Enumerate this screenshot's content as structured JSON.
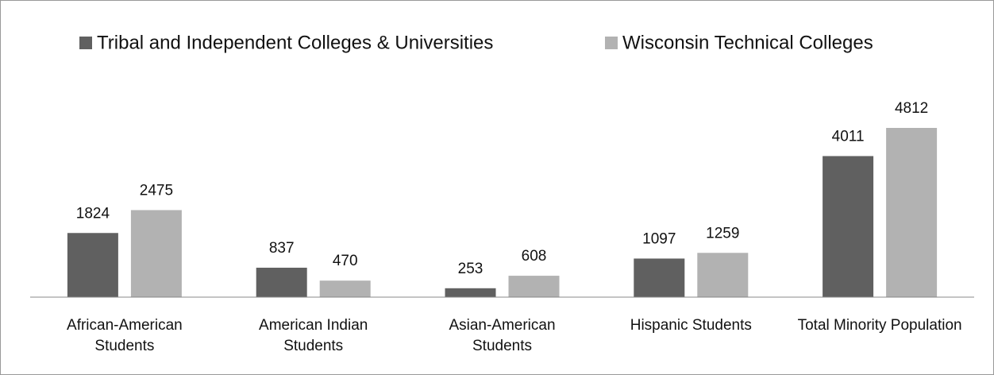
{
  "chart_data": {
    "type": "bar",
    "categories": [
      "African-American Students",
      "American Indian Students",
      "Asian-American Students",
      "Hispanic Students",
      "Total Minority Population"
    ],
    "series": [
      {
        "name": "Tribal and Independent Colleges & Universities",
        "color": "#606060",
        "values": [
          1824,
          837,
          253,
          1097,
          4011
        ]
      },
      {
        "name": "Wisconsin Technical Colleges",
        "color": "#b2b2b2",
        "values": [
          2475,
          470,
          608,
          1259,
          4812
        ]
      }
    ],
    "legend": "top"
  }
}
